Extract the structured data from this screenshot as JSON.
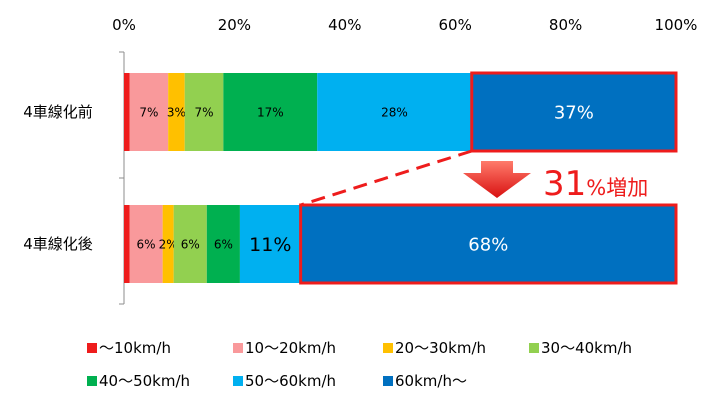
{
  "chart_data": {
    "type": "bar",
    "stacked": true,
    "orientation": "horizontal",
    "percent": true,
    "xlim": [
      0,
      100
    ],
    "x_ticks": [
      "0%",
      "20%",
      "40%",
      "60%",
      "80%",
      "100%"
    ],
    "categories": [
      "4車線化前",
      "4車線化後"
    ],
    "series": [
      {
        "name": "〜10km/h",
        "color": "#ee1c1c",
        "values": [
          1,
          1
        ],
        "labels": [
          "",
          ""
        ]
      },
      {
        "name": "10〜20km/h",
        "color": "#f9999b",
        "values": [
          7,
          6
        ],
        "labels": [
          "7%",
          "6%"
        ]
      },
      {
        "name": "20〜30km/h",
        "color": "#ffc000",
        "values": [
          3,
          2
        ],
        "labels": [
          "3%",
          "2%"
        ]
      },
      {
        "name": "30〜40km/h",
        "color": "#92d050",
        "values": [
          7,
          6
        ],
        "labels": [
          "7%",
          "6%"
        ]
      },
      {
        "name": "40〜50km/h",
        "color": "#00b050",
        "values": [
          17,
          6
        ],
        "labels": [
          "17%",
          "6%"
        ]
      },
      {
        "name": "50〜60km/h",
        "color": "#00b0f0",
        "values": [
          28,
          11
        ],
        "labels": [
          "28%",
          "11%"
        ]
      },
      {
        "name": "60km/h〜",
        "color": "#0070c0",
        "values": [
          37,
          68
        ],
        "labels": [
          "37%",
          "68%"
        ]
      }
    ],
    "annotation": {
      "value": "31",
      "suffix": "%増加",
      "color": "#ee1c1c"
    },
    "legend_position": "bottom",
    "grid": false
  }
}
